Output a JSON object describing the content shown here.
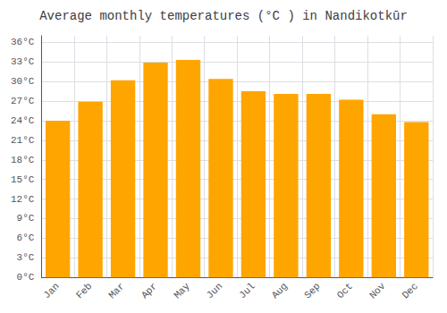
{
  "chart_data": {
    "type": "bar",
    "title": "Average monthly temperatures (°C ) in Nandikotkūr",
    "categories": [
      "Jan",
      "Feb",
      "Mar",
      "Apr",
      "May",
      "Jun",
      "Jul",
      "Aug",
      "Sep",
      "Oct",
      "Nov",
      "Dec"
    ],
    "values": [
      24.0,
      26.9,
      30.2,
      32.9,
      33.3,
      30.4,
      28.5,
      28.1,
      28.1,
      27.2,
      25.0,
      23.8
    ],
    "color": "#FFA500",
    "ylim": [
      0,
      37
    ],
    "yticks": [
      {
        "value": 0,
        "label": "0°C"
      },
      {
        "value": 3,
        "label": "3°C"
      },
      {
        "value": 6,
        "label": "6°C"
      },
      {
        "value": 9,
        "label": "9°C"
      },
      {
        "value": 12,
        "label": "12°C"
      },
      {
        "value": 15,
        "label": "15°C"
      },
      {
        "value": 18,
        "label": "18°C"
      },
      {
        "value": 21,
        "label": "21°C"
      },
      {
        "value": 24,
        "label": "24°C"
      },
      {
        "value": 27,
        "label": "27°C"
      },
      {
        "value": 30,
        "label": "30°C"
      },
      {
        "value": 33,
        "label": "33°C"
      },
      {
        "value": 36,
        "label": "36°C"
      }
    ],
    "grid": true
  }
}
